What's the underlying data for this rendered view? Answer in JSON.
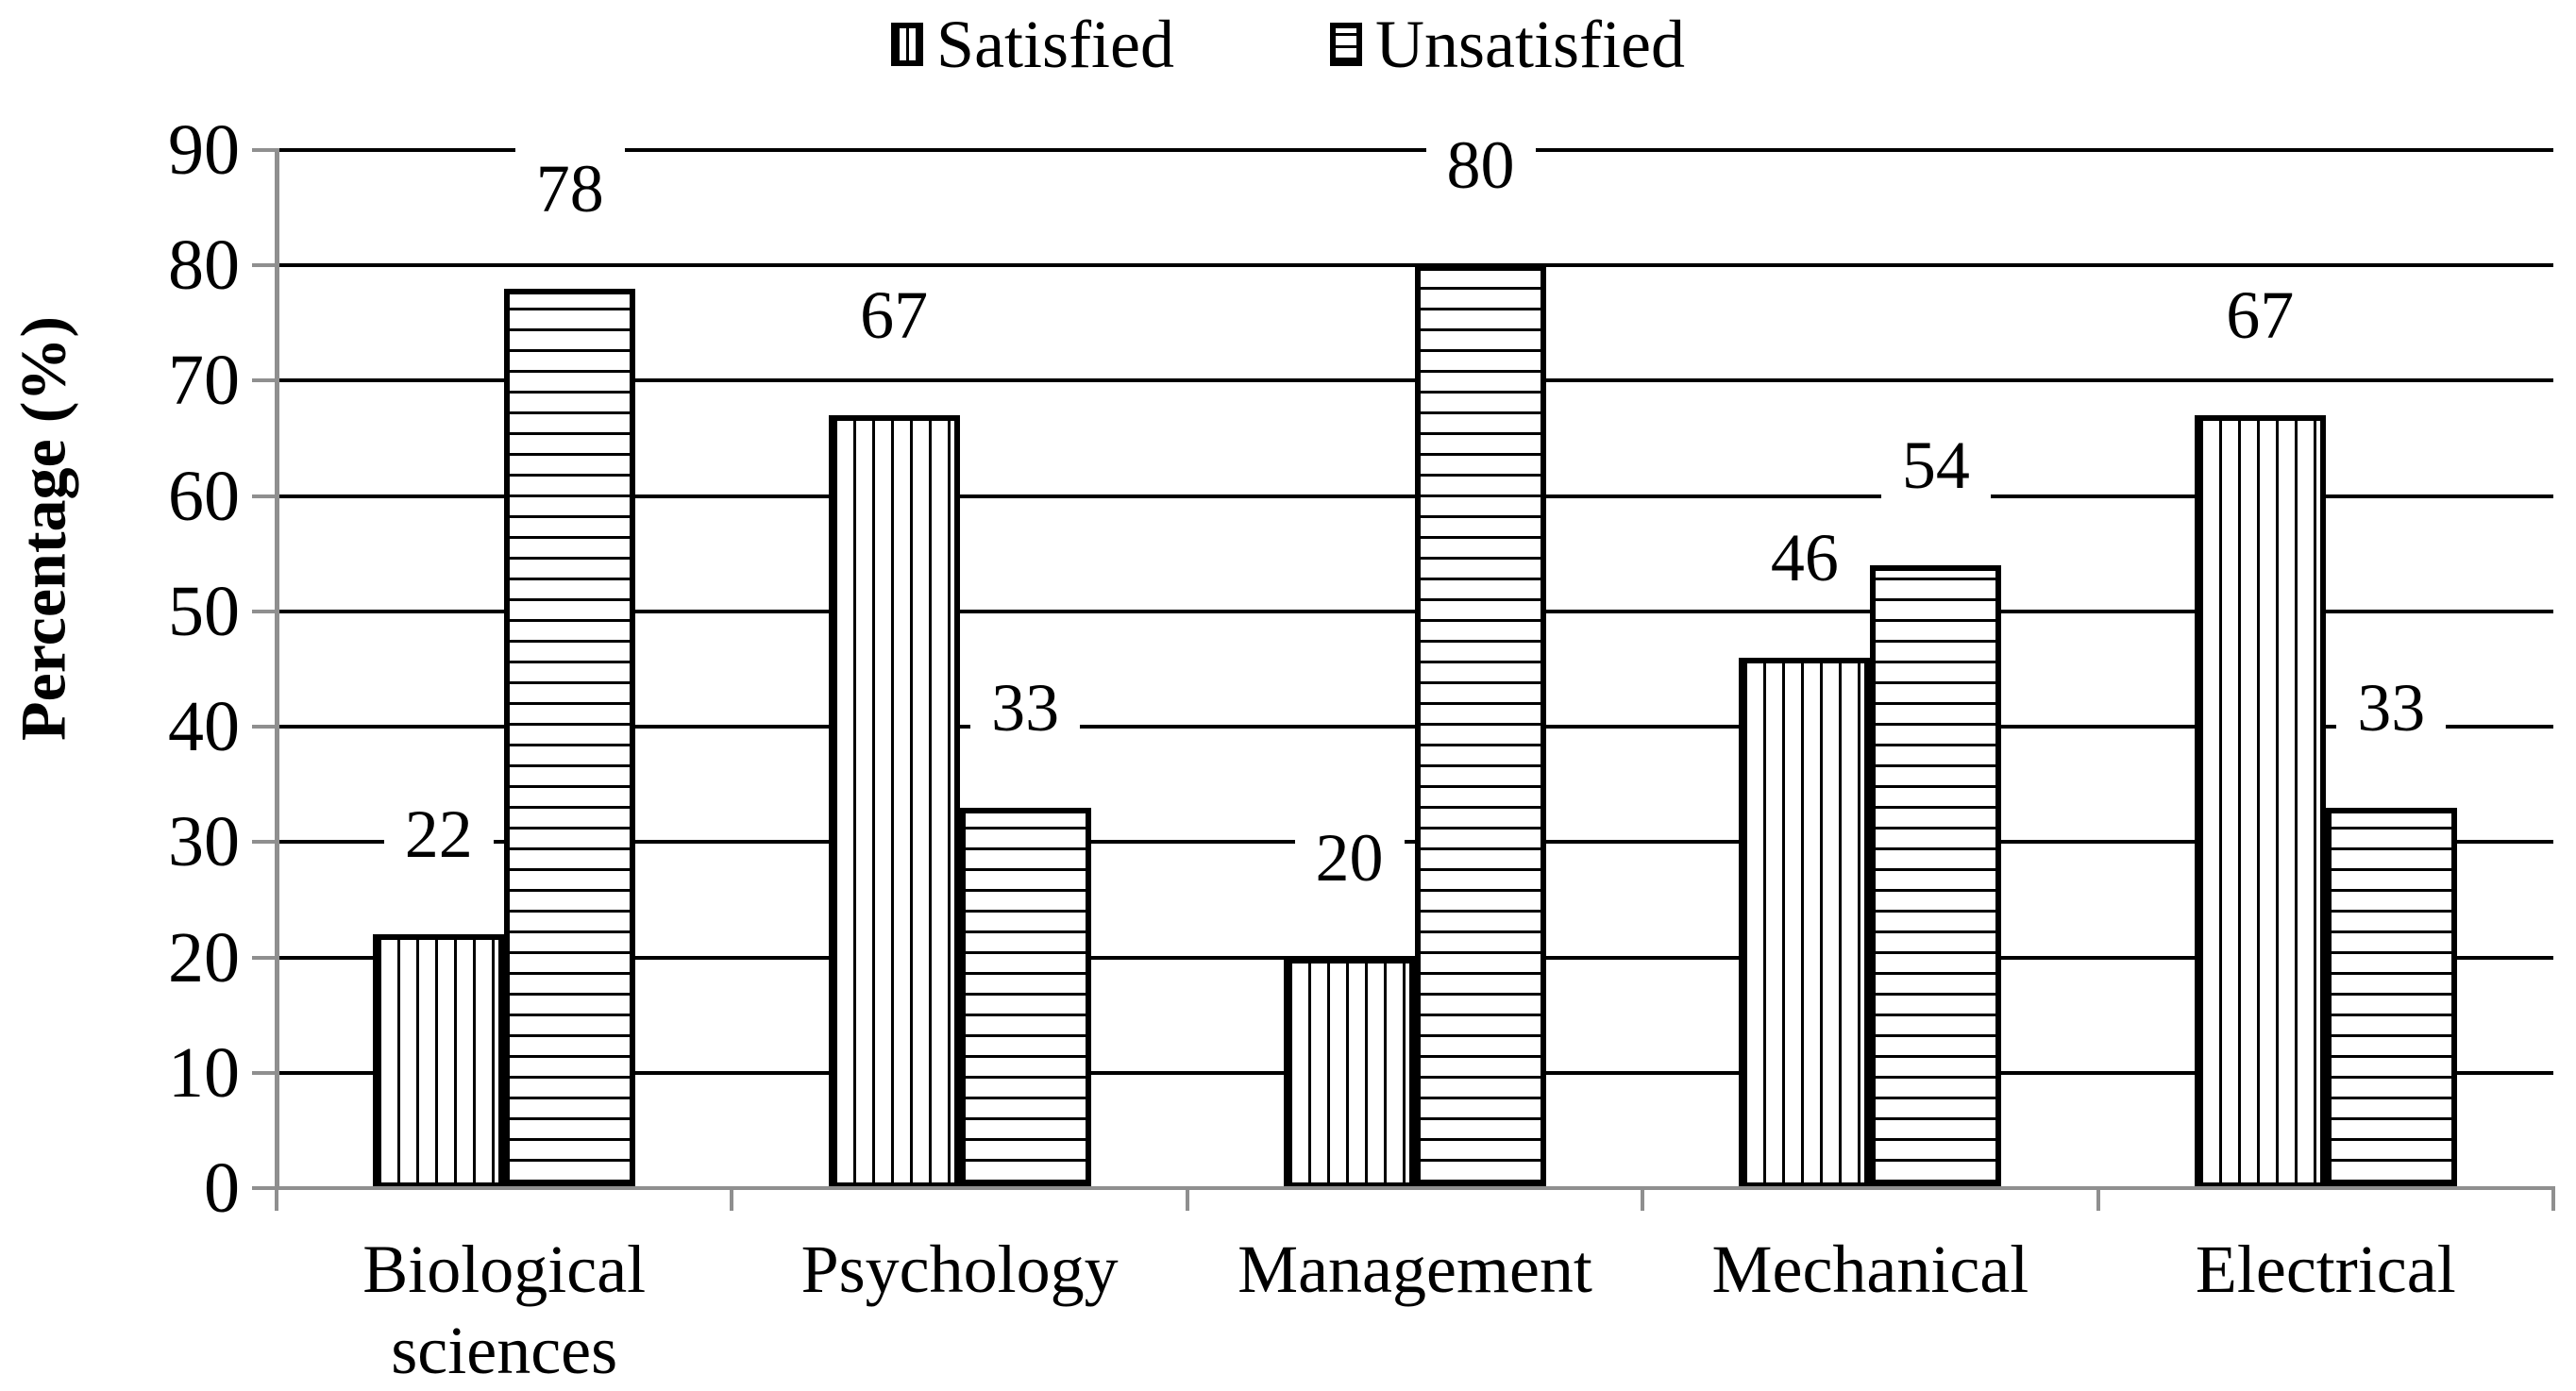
{
  "chart_data": {
    "type": "bar",
    "title": "",
    "ylabel": "Percentage (%)",
    "categories": [
      "Biological sciences",
      "Psychology",
      "Management",
      "Mechanical",
      "Electrical"
    ],
    "series": [
      {
        "name": "Satisfied",
        "pattern": "vertical-stripes",
        "values": [
          22,
          67,
          20,
          46,
          67
        ]
      },
      {
        "name": "Unsatisfied",
        "pattern": "horizontal-stripes",
        "values": [
          78,
          33,
          80,
          54,
          33
        ]
      }
    ],
    "ylim": [
      0,
      90
    ],
    "yticks": [
      90,
      80,
      70,
      60,
      50,
      40,
      30,
      20,
      10,
      0
    ],
    "grid": "horizontal",
    "legend_position": "top-center",
    "data_labels": "outside-end",
    "bar_fill": "white-hatched-black-outline",
    "colors": {
      "line": "#000000",
      "axis": "#8f8f8f",
      "text": "#000000",
      "background": "#ffffff"
    }
  }
}
